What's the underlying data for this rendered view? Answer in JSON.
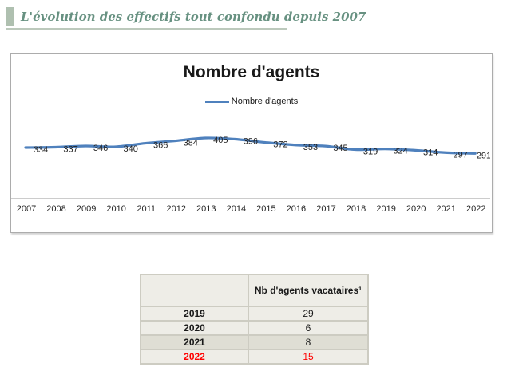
{
  "header": {
    "title": "L'évolution des effectifs tout confondu depuis 2007",
    "text_color": "#679181",
    "bar_color": "#AFC0B0"
  },
  "chart": {
    "title": "Nombre d'agents",
    "legend_label": "Nombre d'agents"
  },
  "chart_data": {
    "type": "line",
    "title": "Nombre d'agents",
    "categories": [
      "2007",
      "2008",
      "2009",
      "2010",
      "2011",
      "2012",
      "2013",
      "2014",
      "2015",
      "2016",
      "2017",
      "2018",
      "2019",
      "2020",
      "2021",
      "2022"
    ],
    "series": [
      {
        "name": "Nombre d'agents",
        "values": [
          334,
          337,
          346,
          340,
          366,
          384,
          405,
          396,
          372,
          353,
          345,
          319,
          324,
          314,
          297,
          291
        ]
      }
    ],
    "line_color": "#4F81BD",
    "smoothed": true,
    "data_labels": "shown right of each point",
    "legend_position": "top-center",
    "y_axis": "hidden",
    "x_axis_line_color": "#9A9A9A",
    "grid": "off"
  },
  "vacataires_table": {
    "col_header": "Nb d'agents vacataires¹",
    "rows": [
      {
        "year": "2019",
        "value": "29"
      },
      {
        "year": "2020",
        "value": "6"
      },
      {
        "year": "2021",
        "value": "8"
      },
      {
        "year": "2022",
        "value": "15"
      }
    ],
    "highlight_year": "2022",
    "highlight_color": "#FF0000"
  }
}
